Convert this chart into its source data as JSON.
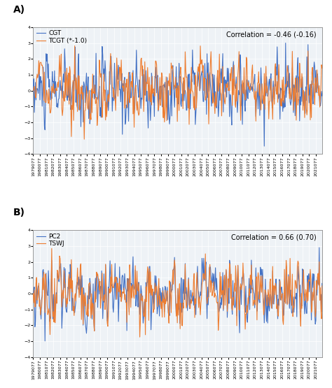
{
  "n": 516,
  "start_year": 1979,
  "start_month": 7,
  "tick_step": 12,
  "ylim": [
    -4,
    4
  ],
  "yticks": [
    -4,
    -3,
    -2,
    -1,
    0,
    1,
    2,
    3,
    4
  ],
  "panel_A": {
    "label": "A)",
    "line1_label": "CGT",
    "line2_label": "TCGT (*-1.0)",
    "line1_color": "#4472C4",
    "line2_color": "#ED7D31",
    "correlation_text": "Correlation = -0.46 (-0.16)"
  },
  "panel_B": {
    "label": "B)",
    "line1_label": "PC2",
    "line2_label": "TSWJ",
    "line1_color": "#4472C4",
    "line2_color": "#ED7D31",
    "correlation_text": "Correlation = 0.66 (0.70)"
  },
  "plot_bg": "#EEF2F6",
  "grid_color": "#FFFFFF",
  "linewidth": 0.8,
  "tick_fontsize": 4.5,
  "legend_fontsize": 6.5,
  "corr_fontsize": 7.0,
  "label_fontsize": 10
}
